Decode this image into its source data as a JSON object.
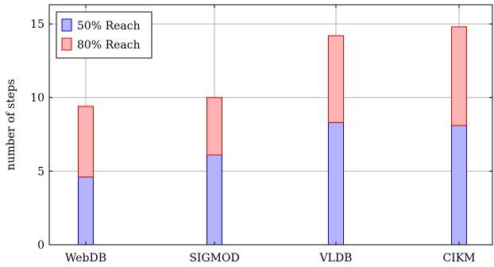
{
  "chart_data": {
    "type": "bar",
    "stacked": true,
    "categories": [
      "WebDB",
      "SIGMOD",
      "VLDB",
      "CIKM"
    ],
    "series": [
      {
        "name": "50% Reach",
        "values": [
          4.6,
          6.1,
          8.3,
          8.1
        ],
        "fill": "#b3b3ff",
        "stroke": "#0000e6"
      },
      {
        "name": "80% Reach",
        "values": [
          4.8,
          3.9,
          5.9,
          6.7
        ],
        "fill": "#ffb3b3",
        "stroke": "#e60000"
      }
    ],
    "title": "",
    "xlabel": "",
    "ylabel": "number of steps",
    "ylim": [
      0,
      16.3
    ],
    "yticks": [
      "0",
      "5",
      "10",
      "15"
    ],
    "grid": true,
    "legend_position": "top-left"
  }
}
